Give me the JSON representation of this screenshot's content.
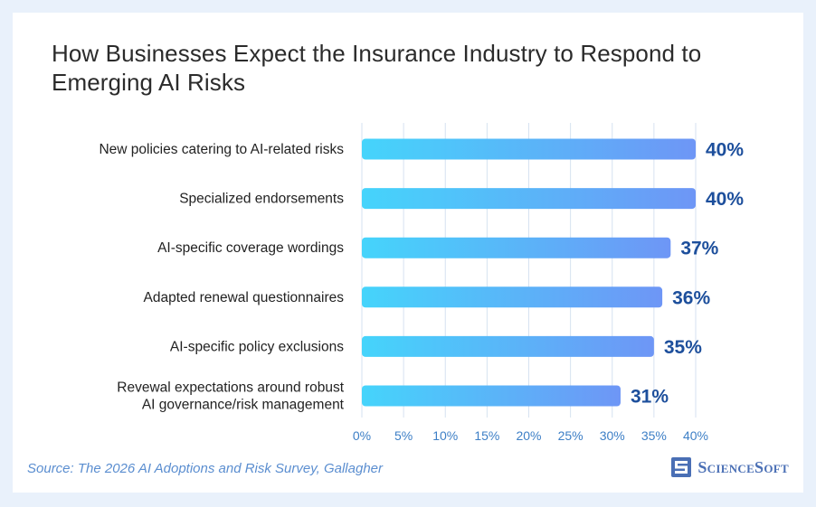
{
  "title": "How Businesses Expect the Insurance Industry to Respond to Emerging AI Risks",
  "source": "Source: The 2026 AI Adoptions and Risk Survey, Gallagher",
  "logo": {
    "text": "ScienceSoft",
    "icon": "sciencesoft-logo-icon",
    "color": "#4a6fb5"
  },
  "colors": {
    "bar_start": "#45d4fb",
    "bar_end": "#6e96f6",
    "value_label": "#1d4f9c",
    "tick_label": "#3d7fc6",
    "gridline": "#d6e2f0"
  },
  "chart_data": {
    "type": "bar",
    "orientation": "horizontal",
    "title": "How Businesses Expect the Insurance Industry to Respond to Emerging AI Risks",
    "categories": [
      [
        "New policies catering to AI-related risks"
      ],
      [
        "Specialized endorsements"
      ],
      [
        "AI-specific coverage wordings"
      ],
      [
        "Adapted renewal questionnaires"
      ],
      [
        "AI-specific policy exclusions"
      ],
      [
        "Revewal expectations around robust",
        "AI governance/risk management"
      ]
    ],
    "values": [
      40,
      40,
      37,
      36,
      35,
      31
    ],
    "value_labels": [
      "40%",
      "40%",
      "37%",
      "36%",
      "35%",
      "31%"
    ],
    "xticks": [
      0,
      5,
      10,
      15,
      20,
      25,
      30,
      35,
      40
    ],
    "xtick_labels": [
      "0%",
      "5%",
      "10%",
      "15%",
      "20%",
      "25%",
      "30%",
      "35%",
      "40%"
    ],
    "xlim": [
      0,
      40
    ],
    "xlabel": "",
    "ylabel": "",
    "grid": "vertical",
    "legend": "none"
  }
}
